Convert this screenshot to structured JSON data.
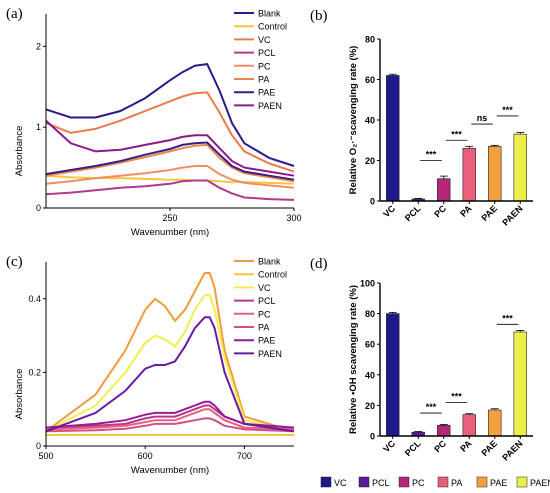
{
  "chart_data": [
    {
      "panel": "(a)",
      "type": "line",
      "xlabel": "Wavenumber (nm)",
      "ylabel": "Absorbance",
      "xlim": [
        200,
        300
      ],
      "ylim": [
        0,
        2.4
      ],
      "xticks": [
        250,
        300
      ],
      "yticks": [
        0,
        1,
        2
      ],
      "grid": false,
      "legend_position": "top-right",
      "x": [
        200,
        210,
        220,
        230,
        240,
        250,
        255,
        260,
        265,
        270,
        275,
        280,
        290,
        300
      ],
      "series": [
        {
          "name": "Blank",
          "color": "#2b1a8a",
          "values": [
            1.22,
            1.12,
            1.12,
            1.2,
            1.36,
            1.58,
            1.68,
            1.76,
            1.78,
            1.45,
            1.05,
            0.8,
            0.62,
            0.52
          ]
        },
        {
          "name": "Control",
          "color": "#f4c542",
          "values": [
            0.4,
            0.38,
            0.37,
            0.37,
            0.36,
            0.35,
            0.35,
            0.34,
            0.34,
            0.33,
            0.32,
            0.32,
            0.31,
            0.3
          ]
        },
        {
          "name": "VC",
          "color": "#ea7a4a",
          "values": [
            1.05,
            0.93,
            0.98,
            1.08,
            1.2,
            1.32,
            1.38,
            1.42,
            1.43,
            1.18,
            0.9,
            0.7,
            0.55,
            0.45
          ]
        },
        {
          "name": "PCL",
          "color": "#b13a8a",
          "values": [
            0.17,
            0.19,
            0.22,
            0.25,
            0.27,
            0.3,
            0.33,
            0.34,
            0.34,
            0.25,
            0.18,
            0.13,
            0.11,
            0.1
          ]
        },
        {
          "name": "PC",
          "color": "#f09060",
          "values": [
            0.3,
            0.33,
            0.37,
            0.4,
            0.43,
            0.47,
            0.5,
            0.52,
            0.52,
            0.42,
            0.35,
            0.31,
            0.28,
            0.25
          ]
        },
        {
          "name": "PA",
          "color": "#e58a4a",
          "values": [
            0.4,
            0.45,
            0.5,
            0.56,
            0.63,
            0.7,
            0.74,
            0.77,
            0.78,
            0.62,
            0.5,
            0.43,
            0.38,
            0.33
          ]
        },
        {
          "name": "PAE",
          "color": "#3b1a8a",
          "values": [
            0.42,
            0.47,
            0.52,
            0.58,
            0.66,
            0.73,
            0.78,
            0.8,
            0.81,
            0.66,
            0.52,
            0.45,
            0.4,
            0.35
          ]
        },
        {
          "name": "PAEN",
          "color": "#8a1a8a",
          "values": [
            1.08,
            0.8,
            0.7,
            0.72,
            0.78,
            0.84,
            0.88,
            0.9,
            0.9,
            0.74,
            0.58,
            0.5,
            0.45,
            0.4
          ]
        }
      ]
    },
    {
      "panel": "(b)",
      "type": "bar",
      "ylabel": "Relative O₂·⁻scavenging rate (%)",
      "xlabel": "",
      "ylim": [
        0,
        80
      ],
      "yticks": [
        0,
        20,
        40,
        60,
        80
      ],
      "categories": [
        "VC",
        "PCL",
        "PC",
        "PA",
        "PAE",
        "PAEN"
      ],
      "values": [
        62,
        1,
        11,
        26,
        27,
        33
      ],
      "errors": [
        0.6,
        0.3,
        1.3,
        1.0,
        0.5,
        0.8
      ],
      "colors": [
        "#1f1a8a",
        "#5a1a9a",
        "#b3267a",
        "#e8607a",
        "#f3a040",
        "#eef04a"
      ],
      "significance": [
        {
          "from": 1,
          "to": 2,
          "label": "***",
          "y": 20
        },
        {
          "from": 2,
          "to": 3,
          "label": "***",
          "y": 30
        },
        {
          "from": 3,
          "to": 4,
          "label": "ns",
          "y": 38
        },
        {
          "from": 4,
          "to": 5,
          "label": "***",
          "y": 42
        }
      ]
    },
    {
      "panel": "(c)",
      "type": "line",
      "xlabel": "Wavenumber (nm)",
      "ylabel": "Absorbance",
      "xlim": [
        500,
        750
      ],
      "ylim": [
        0,
        0.5
      ],
      "xticks": [
        500,
        600,
        700
      ],
      "yticks": [
        0,
        0.2,
        0.4
      ],
      "grid": false,
      "legend_position": "top-right",
      "x": [
        500,
        550,
        580,
        600,
        610,
        620,
        630,
        640,
        650,
        660,
        665,
        670,
        680,
        700,
        750
      ],
      "series": [
        {
          "name": "Blank",
          "color": "#f19a3e",
          "values": [
            0.04,
            0.14,
            0.26,
            0.37,
            0.4,
            0.38,
            0.34,
            0.37,
            0.42,
            0.47,
            0.47,
            0.43,
            0.26,
            0.08,
            0.04
          ]
        },
        {
          "name": "Control",
          "color": "#f4c542",
          "values": [
            0.03,
            0.03,
            0.03,
            0.03,
            0.03,
            0.03,
            0.03,
            0.03,
            0.03,
            0.03,
            0.03,
            0.03,
            0.03,
            0.03,
            0.03
          ]
        },
        {
          "name": "VC",
          "color": "#f2ee4e",
          "values": [
            0.04,
            0.11,
            0.2,
            0.28,
            0.3,
            0.29,
            0.27,
            0.31,
            0.37,
            0.41,
            0.41,
            0.37,
            0.24,
            0.07,
            0.04
          ]
        },
        {
          "name": "PCL",
          "color": "#b13a8a",
          "values": [
            0.05,
            0.055,
            0.06,
            0.075,
            0.08,
            0.08,
            0.08,
            0.09,
            0.1,
            0.11,
            0.11,
            0.1,
            0.08,
            0.06,
            0.05
          ]
        },
        {
          "name": "PC",
          "color": "#e8607a",
          "values": [
            0.045,
            0.05,
            0.055,
            0.065,
            0.07,
            0.07,
            0.07,
            0.08,
            0.09,
            0.1,
            0.1,
            0.09,
            0.07,
            0.05,
            0.045
          ]
        },
        {
          "name": "PA",
          "color": "#d0508a",
          "values": [
            0.04,
            0.043,
            0.047,
            0.055,
            0.06,
            0.06,
            0.06,
            0.065,
            0.07,
            0.075,
            0.075,
            0.07,
            0.055,
            0.045,
            0.04
          ]
        },
        {
          "name": "PAE",
          "color": "#9a1a9a",
          "values": [
            0.05,
            0.06,
            0.07,
            0.085,
            0.09,
            0.09,
            0.09,
            0.1,
            0.11,
            0.12,
            0.12,
            0.11,
            0.08,
            0.06,
            0.05
          ]
        },
        {
          "name": "PAEN",
          "color": "#6a1aa0",
          "values": [
            0.04,
            0.09,
            0.15,
            0.21,
            0.22,
            0.22,
            0.23,
            0.27,
            0.32,
            0.35,
            0.35,
            0.32,
            0.2,
            0.06,
            0.04
          ]
        }
      ]
    },
    {
      "panel": "(d)",
      "type": "bar",
      "ylabel": "Relative •OH scavenging rate (%)",
      "xlabel": "",
      "ylim": [
        0,
        100
      ],
      "yticks": [
        0,
        20,
        40,
        60,
        80,
        100
      ],
      "categories": [
        "VC",
        "PCL",
        "PC",
        "PA",
        "PAE",
        "PAEN"
      ],
      "values": [
        80,
        2.5,
        7,
        14,
        17,
        68
      ],
      "errors": [
        0.8,
        0.4,
        0.6,
        0.6,
        0.8,
        1.0
      ],
      "colors": [
        "#1f1a8a",
        "#5a1a9a",
        "#b3267a",
        "#e8607a",
        "#f3a040",
        "#eef04a"
      ],
      "significance": [
        {
          "from": 1,
          "to": 2,
          "label": "***",
          "y": 15
        },
        {
          "from": 2,
          "to": 3,
          "label": "***",
          "y": 22
        },
        {
          "from": 4,
          "to": 5,
          "label": "***",
          "y": 73
        }
      ]
    }
  ],
  "bottom_legend": [
    {
      "label": "VC",
      "color": "#1f1a8a"
    },
    {
      "label": "PCL",
      "color": "#5a1a9a"
    },
    {
      "label": "PC",
      "color": "#b3267a"
    },
    {
      "label": "PA",
      "color": "#e8607a"
    },
    {
      "label": "PAE",
      "color": "#f3a040"
    },
    {
      "label": "PAEN",
      "color": "#eef04a"
    }
  ]
}
